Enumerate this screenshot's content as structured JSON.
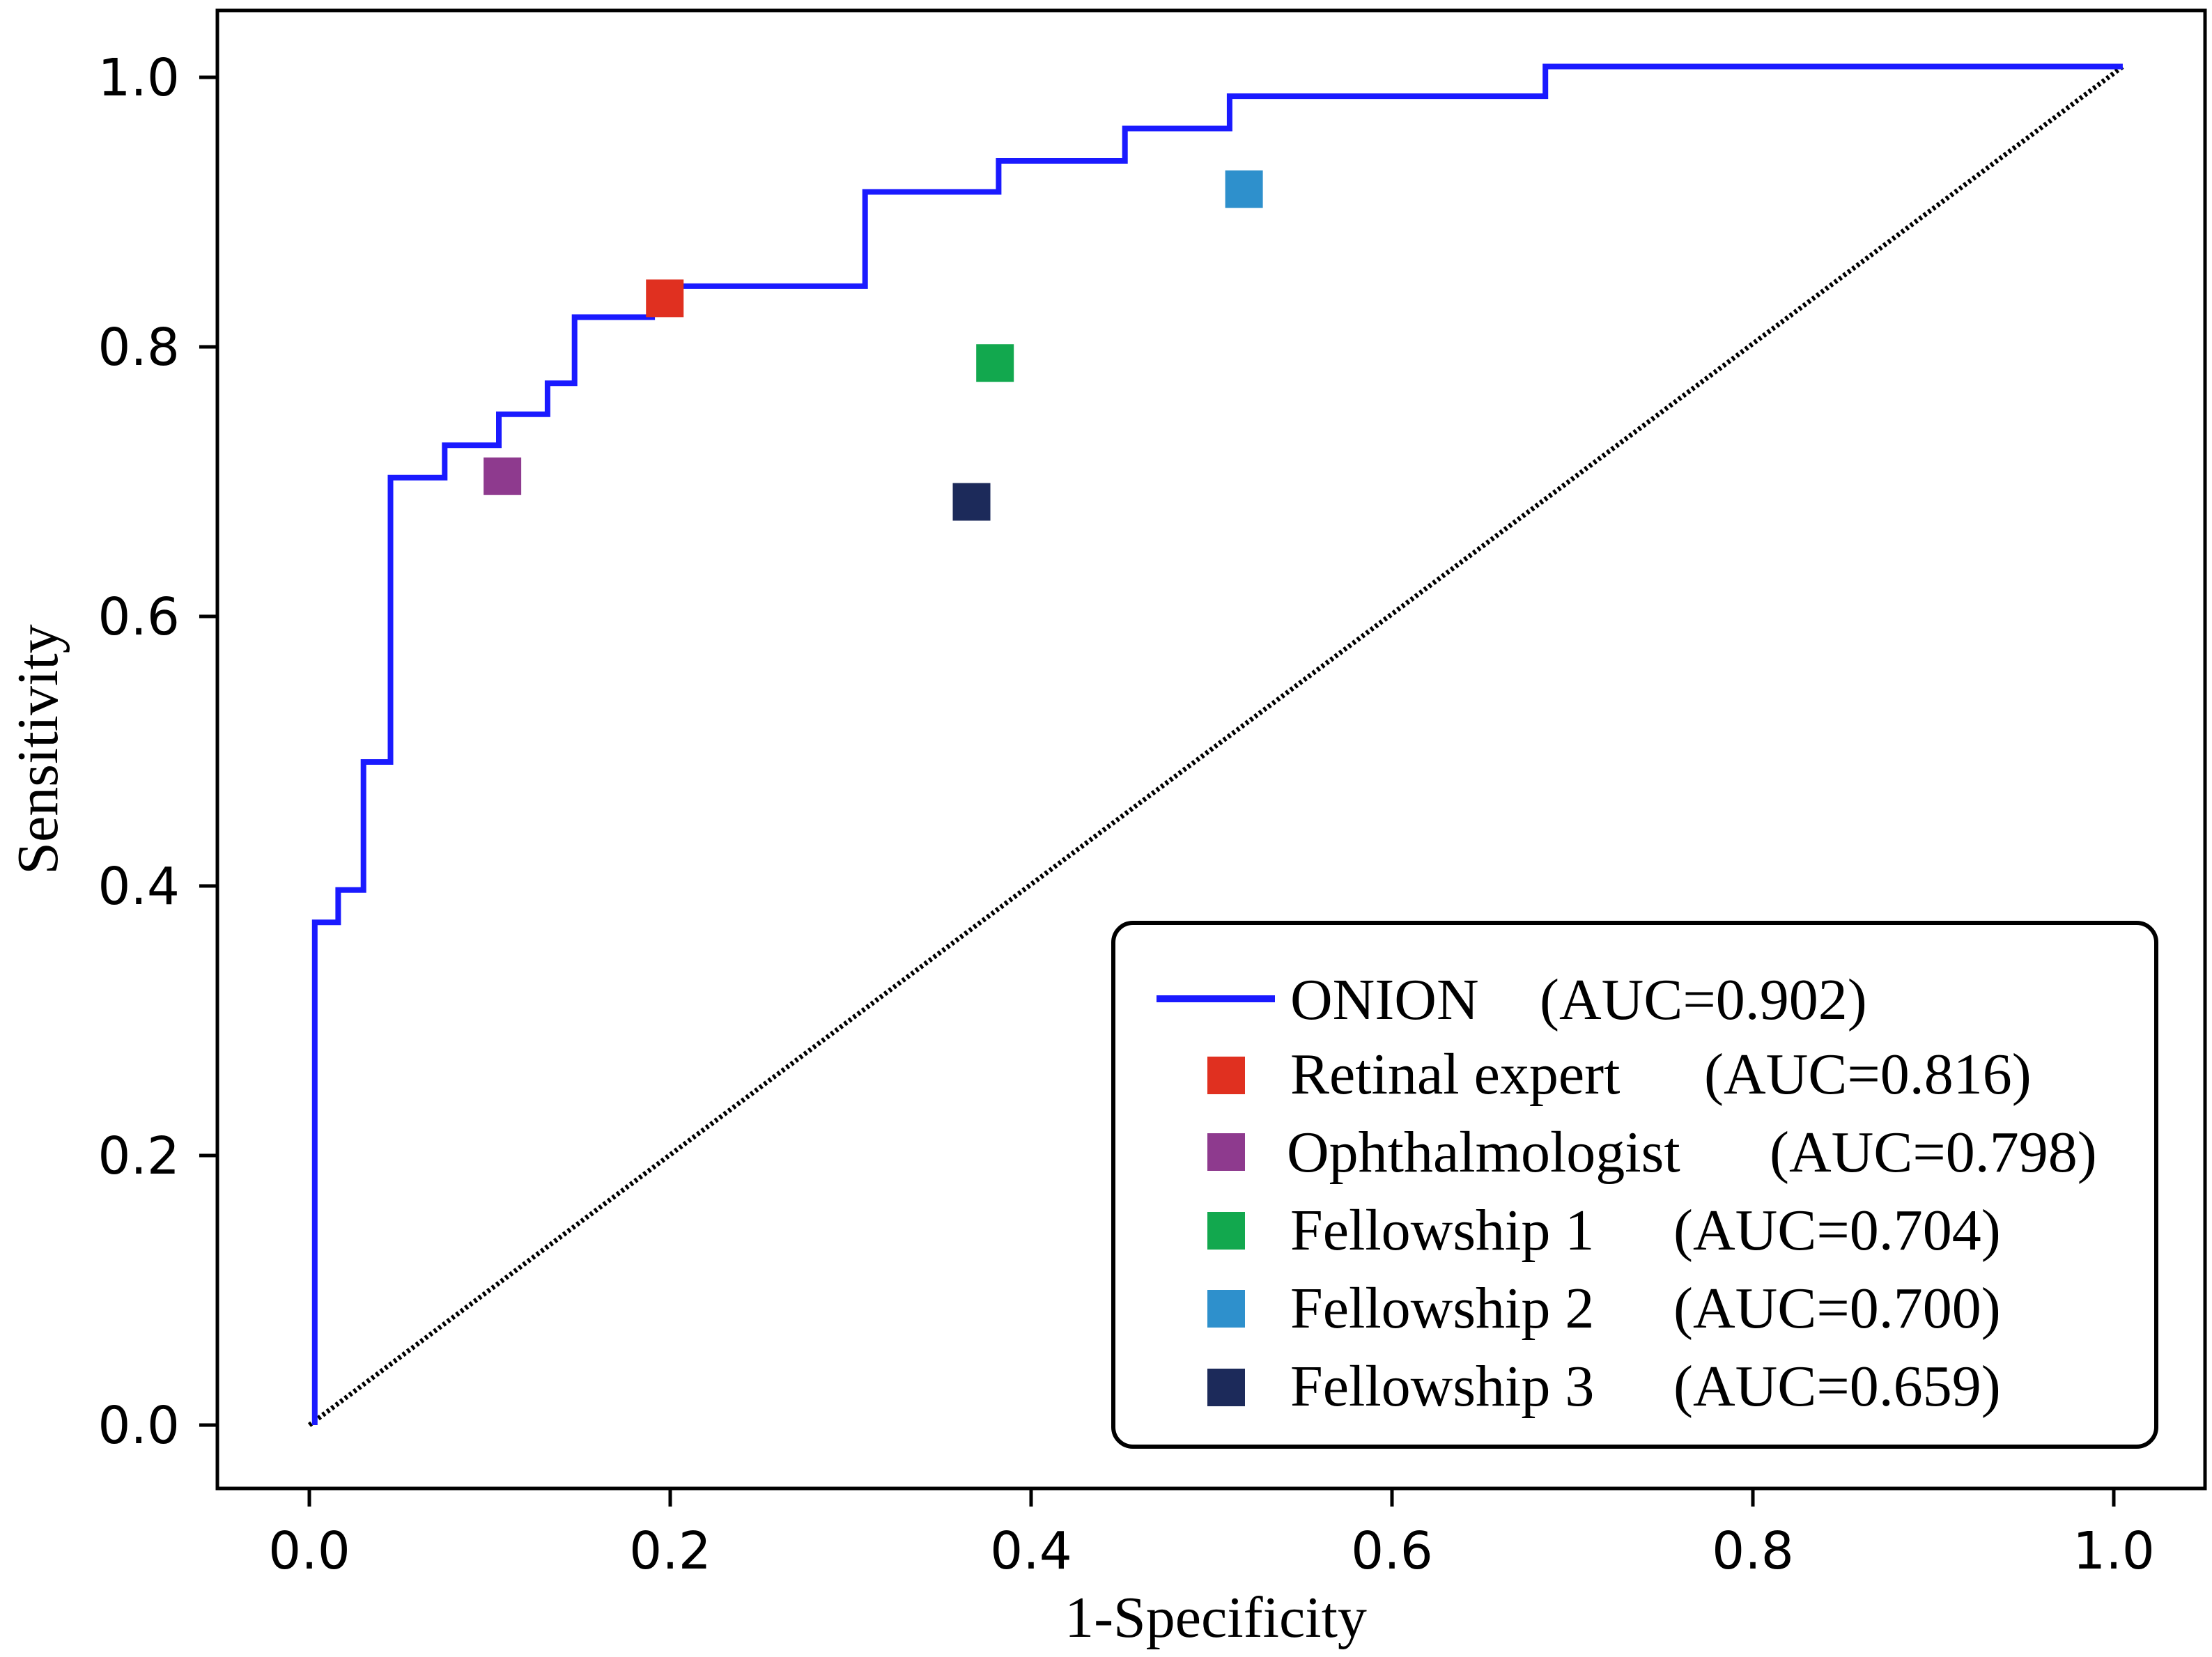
{
  "chart_data": {
    "type": "line",
    "title": "",
    "xlabel": "1-Specificity",
    "ylabel": "Sensitivity",
    "xlim": [
      -0.05,
      1.05
    ],
    "ylim": [
      -0.05,
      1.05
    ],
    "x_ticks": [
      "0.0",
      "0.2",
      "0.4",
      "0.6",
      "0.8",
      "1.0"
    ],
    "y_ticks": [
      "0.0",
      "0.2",
      "0.4",
      "0.6",
      "0.8",
      "1.0"
    ],
    "grid": false,
    "legend_position": "bottom-right",
    "series": [
      {
        "name": "ONION",
        "legend_label": "ONION",
        "auc_label": "(AUC=0.902)",
        "kind": "step-line",
        "color": "#1a1aff",
        "x": [
          0.003,
          0.003,
          0.016,
          0.016,
          0.03,
          0.03,
          0.045,
          0.045,
          0.075,
          0.075,
          0.105,
          0.105,
          0.132,
          0.132,
          0.147,
          0.147,
          0.19,
          0.19,
          0.308,
          0.308,
          0.382,
          0.382,
          0.452,
          0.452,
          0.51,
          0.51,
          0.685,
          0.685,
          1.005
        ],
        "y": [
          0.0,
          0.373,
          0.373,
          0.397,
          0.397,
          0.492,
          0.492,
          0.703,
          0.703,
          0.727,
          0.727,
          0.75,
          0.75,
          0.773,
          0.773,
          0.822,
          0.822,
          0.845,
          0.845,
          0.915,
          0.915,
          0.938,
          0.938,
          0.962,
          0.962,
          0.986,
          0.986,
          1.008,
          1.008
        ]
      },
      {
        "name": "Retinal expert",
        "legend_label": "Retinal expert",
        "auc_label": "(AUC=0.816)",
        "kind": "point",
        "color": "#e03020",
        "x": [
          0.197
        ],
        "y": [
          0.836
        ]
      },
      {
        "name": "Ophthalmologist",
        "legend_label": "Ophthalmologist",
        "auc_label": "(AUC=0.798)",
        "kind": "point",
        "color": "#8e3a8e",
        "x": [
          0.107
        ],
        "y": [
          0.704
        ]
      },
      {
        "name": "Fellowship 1",
        "legend_label": "Fellowship 1",
        "auc_label": "(AUC=0.704)",
        "kind": "point",
        "color": "#12a84e",
        "x": [
          0.38
        ],
        "y": [
          0.788
        ]
      },
      {
        "name": "Fellowship 2",
        "legend_label": "Fellowship 2",
        "auc_label": "(AUC=0.700)",
        "kind": "point",
        "color": "#2e90cc",
        "x": [
          0.518
        ],
        "y": [
          0.917
        ]
      },
      {
        "name": "Fellowship 3",
        "legend_label": "Fellowship 3",
        "auc_label": "(AUC=0.659)",
        "kind": "point",
        "color": "#1c2a5a",
        "x": [
          0.367
        ],
        "y": [
          0.685
        ]
      }
    ],
    "reference_line": {
      "name": "chance",
      "style": "dotted",
      "color": "#000000",
      "x": [
        0.0,
        1.005
      ],
      "y": [
        0.0,
        1.008
      ]
    }
  }
}
